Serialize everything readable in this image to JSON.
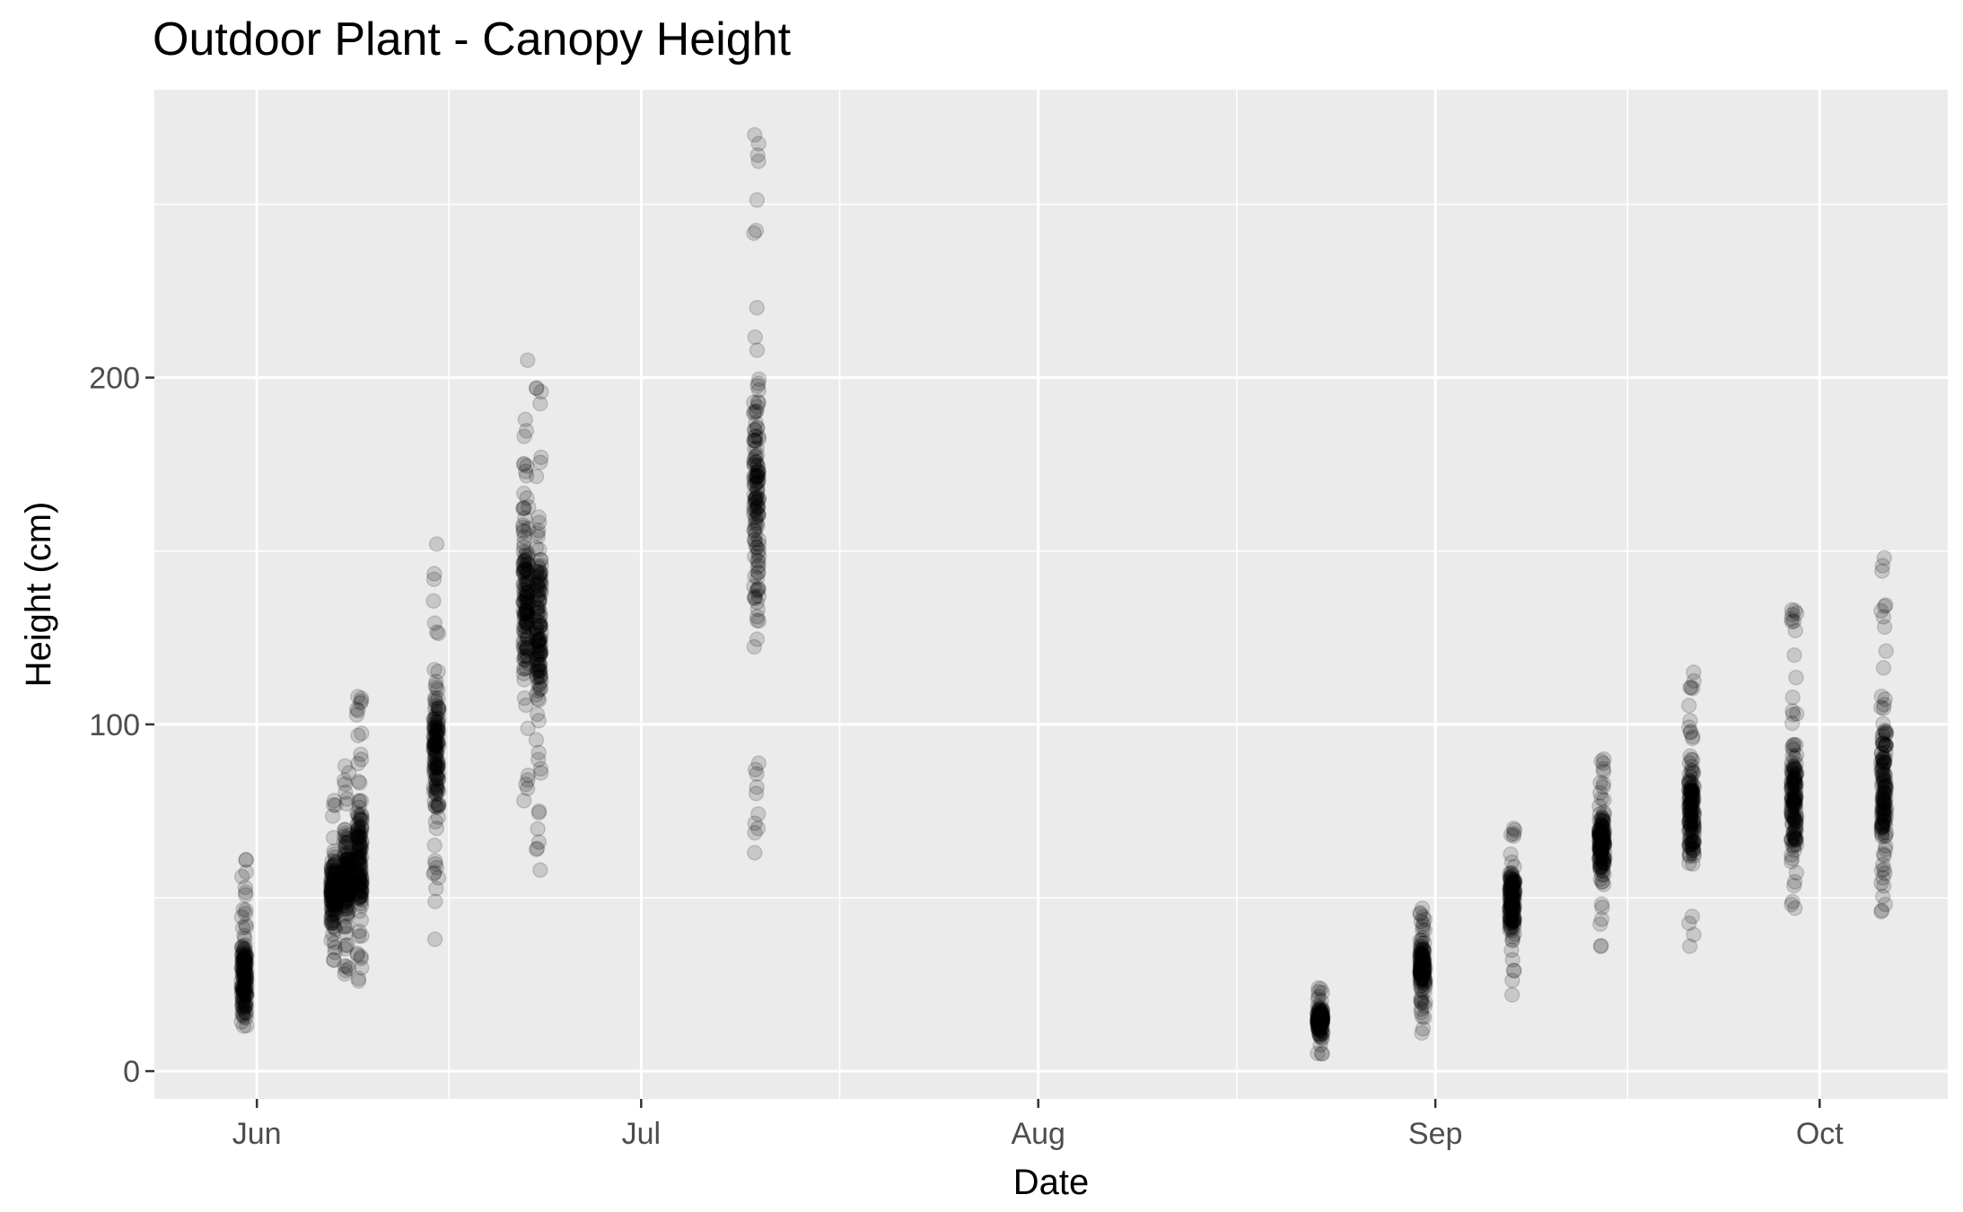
{
  "chart_data": {
    "type": "scatter",
    "title": "Outdoor Plant - Canopy Height",
    "xlabel": "Date",
    "ylabel": "Height (cm)",
    "x_ticks": [
      "Jun",
      "Jul",
      "Aug",
      "Sep",
      "Oct"
    ],
    "x_tick_dates": [
      "2019-06-01",
      "2019-07-01",
      "2019-08-01",
      "2019-09-01",
      "2019-10-01"
    ],
    "y_ticks": [
      0,
      100,
      200
    ],
    "xlim": [
      "2019-05-24",
      "2019-10-11"
    ],
    "ylim": [
      -8,
      283
    ],
    "grid": true,
    "point_color": "#000000",
    "point_alpha": 0.15,
    "panel_background": "#ebebeb",
    "clusters": [
      {
        "date": "2019-05-31",
        "min": 13,
        "max": 61,
        "center": 26
      },
      {
        "date": "2019-06-07",
        "min": 32,
        "max": 78,
        "center": 52
      },
      {
        "date": "2019-06-08",
        "min": 28,
        "max": 88,
        "center": 55
      },
      {
        "date": "2019-06-09",
        "min": 26,
        "max": 108,
        "center": 60
      },
      {
        "date": "2019-06-15",
        "min": 38,
        "max": 152,
        "center": 92
      },
      {
        "date": "2019-06-22",
        "min": 78,
        "max": 205,
        "center": 135
      },
      {
        "date": "2019-06-23",
        "min": 58,
        "max": 197,
        "center": 130
      },
      {
        "date": "2019-07-10",
        "min": 63,
        "max": 270,
        "center": 165
      },
      {
        "date": "2019-08-23",
        "min": 5,
        "max": 24,
        "center": 15
      },
      {
        "date": "2019-08-31",
        "min": 11,
        "max": 47,
        "center": 30
      },
      {
        "date": "2019-09-07",
        "min": 22,
        "max": 70,
        "center": 50
      },
      {
        "date": "2019-09-14",
        "min": 36,
        "max": 90,
        "center": 65
      },
      {
        "date": "2019-09-21",
        "min": 36,
        "max": 115,
        "center": 75
      },
      {
        "date": "2019-09-29",
        "min": 47,
        "max": 133,
        "center": 78
      },
      {
        "date": "2019-10-06",
        "min": 46,
        "max": 148,
        "center": 80
      }
    ]
  }
}
